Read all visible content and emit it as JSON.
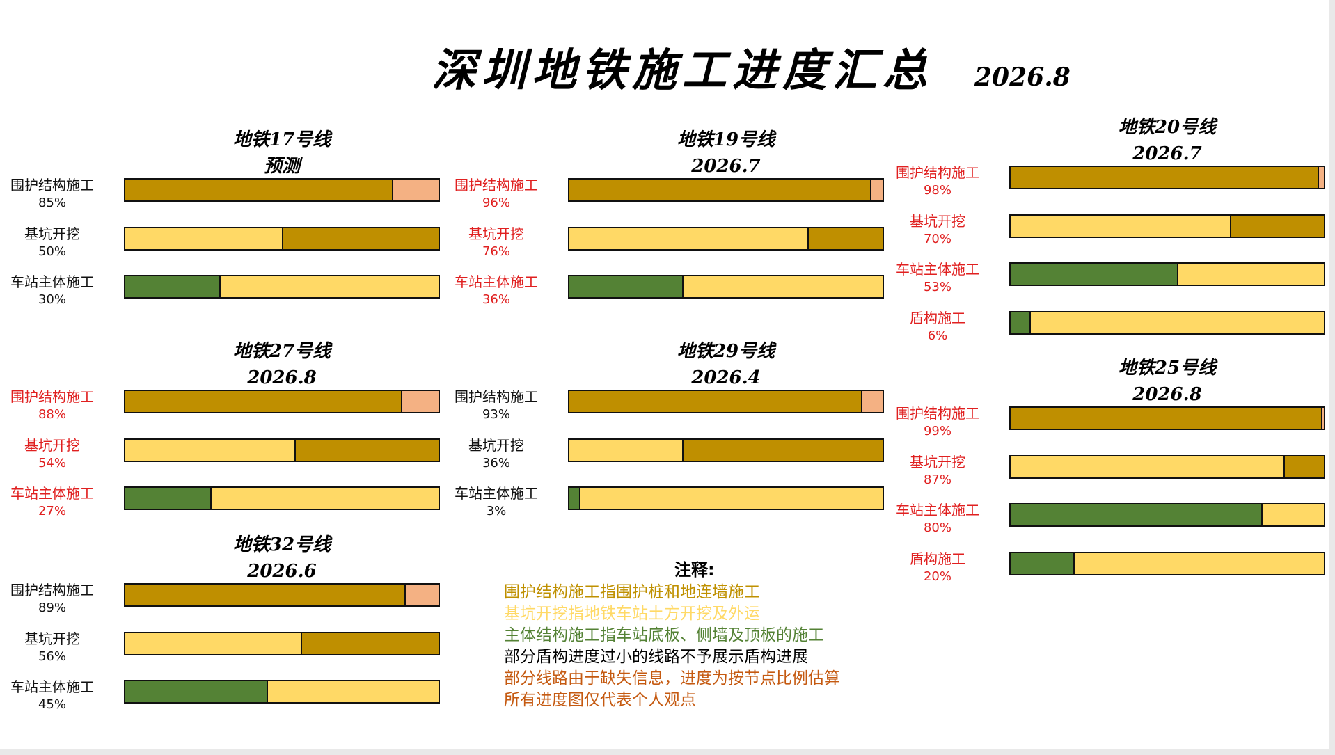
{
  "title": "深圳地铁施工进度汇总",
  "date": "2026.8",
  "colors": {
    "enclosure": "#bf8f00",
    "enclosure_remaining": "#f4b183",
    "excavation_done": "#ffd966",
    "main_done": "#548235"
  },
  "panels": [
    {
      "name": "地铁17号线",
      "subtitle": "预测",
      "labels_red": false,
      "rows": [
        {
          "label": "围护结构施工",
          "pct": "85%",
          "value": 85,
          "kind": "enclosure"
        },
        {
          "label": "基坑开挖",
          "pct": "50%",
          "value": 50,
          "kind": "excavation"
        },
        {
          "label": "车站主体施工",
          "pct": "30%",
          "value": 30,
          "kind": "main"
        }
      ]
    },
    {
      "name": "地铁19号线",
      "subtitle": "2026.7",
      "labels_red": true,
      "rows": [
        {
          "label": "围护结构施工",
          "pct": "96%",
          "value": 96,
          "kind": "enclosure"
        },
        {
          "label": "基坑开挖",
          "pct": "76%",
          "value": 76,
          "kind": "excavation"
        },
        {
          "label": "车站主体施工",
          "pct": "36%",
          "value": 36,
          "kind": "main"
        }
      ]
    },
    {
      "name": "地铁20号线",
      "subtitle": "2026.7",
      "labels_red": true,
      "rows": [
        {
          "label": "围护结构施工",
          "pct": "98%",
          "value": 98,
          "kind": "enclosure"
        },
        {
          "label": "基坑开挖",
          "pct": "70%",
          "value": 70,
          "kind": "excavation"
        },
        {
          "label": "车站主体施工",
          "pct": "53%",
          "value": 53,
          "kind": "main"
        },
        {
          "label": "盾构施工",
          "pct": "6%",
          "value": 6,
          "kind": "main"
        }
      ]
    },
    {
      "name": "地铁27号线",
      "subtitle": "2026.8",
      "labels_red": true,
      "rows": [
        {
          "label": "围护结构施工",
          "pct": "88%",
          "value": 88,
          "kind": "enclosure"
        },
        {
          "label": "基坑开挖",
          "pct": "54%",
          "value": 54,
          "kind": "excavation"
        },
        {
          "label": "车站主体施工",
          "pct": "27%",
          "value": 27,
          "kind": "main"
        }
      ]
    },
    {
      "name": "地铁29号线",
      "subtitle": "2026.4",
      "labels_red": false,
      "rows": [
        {
          "label": "围护结构施工",
          "pct": "93%",
          "value": 93,
          "kind": "enclosure"
        },
        {
          "label": "基坑开挖",
          "pct": "36%",
          "value": 36,
          "kind": "excavation"
        },
        {
          "label": "车站主体施工",
          "pct": "3%",
          "value": 3,
          "kind": "main"
        }
      ]
    },
    {
      "name": "地铁25号线",
      "subtitle": "2026.8",
      "labels_red": true,
      "rows": [
        {
          "label": "围护结构施工",
          "pct": "99%",
          "value": 99,
          "kind": "enclosure"
        },
        {
          "label": "基坑开挖",
          "pct": "87%",
          "value": 87,
          "kind": "excavation"
        },
        {
          "label": "车站主体施工",
          "pct": "80%",
          "value": 80,
          "kind": "main"
        },
        {
          "label": "盾构施工",
          "pct": "20%",
          "value": 20,
          "kind": "main"
        }
      ]
    },
    {
      "name": "地铁32号线",
      "subtitle": "2026.6",
      "labels_red": false,
      "rows": [
        {
          "label": "围护结构施工",
          "pct": "89%",
          "value": 89,
          "kind": "enclosure"
        },
        {
          "label": "基坑开挖",
          "pct": "56%",
          "value": 56,
          "kind": "excavation"
        },
        {
          "label": "车站主体施工",
          "pct": "45%",
          "value": 45,
          "kind": "main"
        }
      ]
    }
  ],
  "notes": {
    "title": "注释:",
    "lines": [
      {
        "text": "围护结构施工指围护桩和地连墙施工",
        "color": "#bf9000"
      },
      {
        "text": "基坑开挖指地铁车站土方开挖及外运",
        "color": "#ffd966"
      },
      {
        "text": "主体结构施工指车站底板、侧墙及顶板的施工",
        "color": "#548235"
      },
      {
        "text": "部分盾构进度过小的线路不予展示盾构进展",
        "color": "#000000"
      },
      {
        "text": "部分线路由于缺失信息，进度为按节点比例估算",
        "color": "#c55a11"
      },
      {
        "text": "所有进度图仅代表个人观点",
        "color": "#c55a11"
      }
    ]
  },
  "chart_data": {
    "type": "bar",
    "title": "深圳地铁施工进度汇总",
    "subtitle": "2026.8",
    "xlim": [
      0,
      100
    ],
    "legend": "notes block, bottom-center",
    "charts": [
      {
        "title": "地铁17号线",
        "subtitle": "预测",
        "categories": [
          "围护结构施工",
          "基坑开挖",
          "车站主体施工"
        ],
        "values": [
          85,
          50,
          30
        ]
      },
      {
        "title": "地铁19号线",
        "subtitle": "2026.7",
        "categories": [
          "围护结构施工",
          "基坑开挖",
          "车站主体施工"
        ],
        "values": [
          96,
          76,
          36
        ]
      },
      {
        "title": "地铁20号线",
        "subtitle": "2026.7",
        "categories": [
          "围护结构施工",
          "基坑开挖",
          "车站主体施工",
          "盾构施工"
        ],
        "values": [
          98,
          70,
          53,
          6
        ]
      },
      {
        "title": "地铁27号线",
        "subtitle": "2026.8",
        "categories": [
          "围护结构施工",
          "基坑开挖",
          "车站主体施工"
        ],
        "values": [
          88,
          54,
          27
        ]
      },
      {
        "title": "地铁29号线",
        "subtitle": "2026.4",
        "categories": [
          "围护结构施工",
          "基坑开挖",
          "车站主体施工"
        ],
        "values": [
          93,
          36,
          3
        ]
      },
      {
        "title": "地铁25号线",
        "subtitle": "2026.8",
        "categories": [
          "围护结构施工",
          "基坑开挖",
          "车站主体施工",
          "盾构施工"
        ],
        "values": [
          99,
          87,
          80,
          20
        ]
      },
      {
        "title": "地铁32号线",
        "subtitle": "2026.6",
        "categories": [
          "围护结构施工",
          "基坑开挖",
          "车站主体施工"
        ],
        "values": [
          89,
          56,
          45
        ]
      }
    ]
  }
}
